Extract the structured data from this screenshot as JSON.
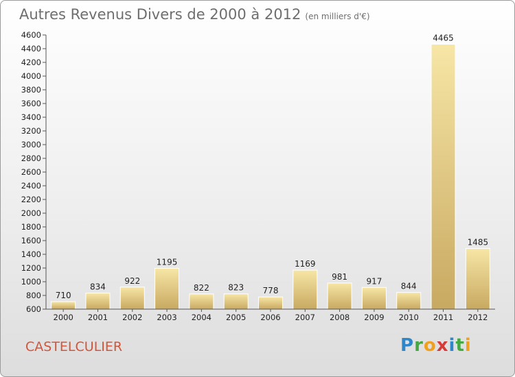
{
  "chart_data": {
    "type": "bar",
    "title": "Autres Revenus Divers de 2000 à 2012",
    "unit_note": "(en milliers d'€)",
    "categories": [
      "2000",
      "2001",
      "2002",
      "2003",
      "2004",
      "2005",
      "2006",
      "2007",
      "2008",
      "2009",
      "2010",
      "2011",
      "2012"
    ],
    "values": [
      710,
      834,
      922,
      1195,
      822,
      823,
      778,
      1169,
      981,
      917,
      844,
      4465,
      1485
    ],
    "ylim": [
      600,
      4600
    ],
    "yticks": [
      600,
      800,
      1000,
      1200,
      1400,
      1600,
      1800,
      2000,
      2200,
      2400,
      2600,
      2800,
      3000,
      3200,
      3400,
      3600,
      3800,
      4000,
      4200,
      4400,
      4600
    ],
    "grid": false,
    "bar_color_top": "#f7e6a6",
    "bar_color_bottom": "#c8a961"
  },
  "place": "CASTELCULIER",
  "logo": {
    "letters": [
      {
        "ch": "P",
        "color": "#2f86c8"
      },
      {
        "ch": "r",
        "color": "#46a843"
      },
      {
        "ch": "o",
        "color": "#f0a020"
      },
      {
        "ch": "x",
        "color": "#d83a3a"
      },
      {
        "ch": "i",
        "color": "#2f86c8"
      },
      {
        "ch": "t",
        "color": "#46a843"
      },
      {
        "ch": "i",
        "color": "#f0a020"
      }
    ]
  }
}
